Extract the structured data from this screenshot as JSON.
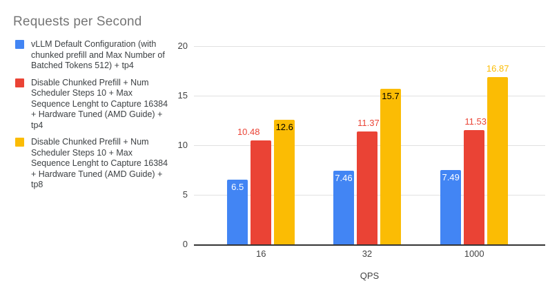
{
  "chart_data": {
    "type": "bar",
    "title": "Requests per Second",
    "xlabel": "QPS",
    "ylabel": "",
    "categories": [
      "16",
      "32",
      "1000"
    ],
    "ylim": [
      0,
      20
    ],
    "yticks": [
      0,
      5,
      10,
      15,
      20
    ],
    "grid": true,
    "legend_position": "left",
    "series": [
      {
        "name": "vLLM Default Configuration (with chunked prefill and Max Number of Batched Tokens 512) + tp4",
        "color": "#4285F4",
        "values": [
          6.5,
          7.46,
          7.49
        ],
        "labels": [
          "6.5",
          "7.46",
          "7.49"
        ],
        "label_placement": [
          "inside",
          "inside",
          "inside"
        ],
        "label_colors": [
          "#FFFFFF",
          "#FFFFFF",
          "#FFFFFF"
        ],
        "label_dx": [
          0,
          0,
          0
        ]
      },
      {
        "name": "Disable Chunked Prefill + Num Scheduler Steps 10 + Max Sequence Lenght to Capture 16384 + Hardware Tuned (AMD Guide) + tp4",
        "color": "#EA4335",
        "values": [
          10.48,
          11.37,
          11.53
        ],
        "labels": [
          "10.48",
          "11.37",
          "11.53"
        ],
        "label_placement": [
          "above",
          "above",
          "above"
        ],
        "label_colors": [
          "#EA4335",
          "#EA4335",
          "#EA4335"
        ],
        "label_dx": [
          -18,
          2,
          2
        ]
      },
      {
        "name": "Disable Chunked Prefill + Num Scheduler Steps 10 + Max Sequence Lenght to Capture 16384 + Hardware Tuned (AMD Guide) + tp8",
        "color": "#FBBC04",
        "values": [
          12.6,
          15.7,
          16.87
        ],
        "labels": [
          "12.6",
          "15.7",
          "16.87"
        ],
        "label_placement": [
          "inside",
          "inside",
          "above"
        ],
        "label_colors": [
          "#000000",
          "#000000",
          "#FBBC04"
        ],
        "label_dx": [
          0,
          0,
          0
        ]
      }
    ],
    "styles": {
      "background": "#FFFFFF",
      "title_color": "#757575",
      "legend_text_color": "#3C4043",
      "axis_text_color": "#424242",
      "grid_color": "#E0E0E0",
      "baseline_color": "#333333"
    }
  }
}
